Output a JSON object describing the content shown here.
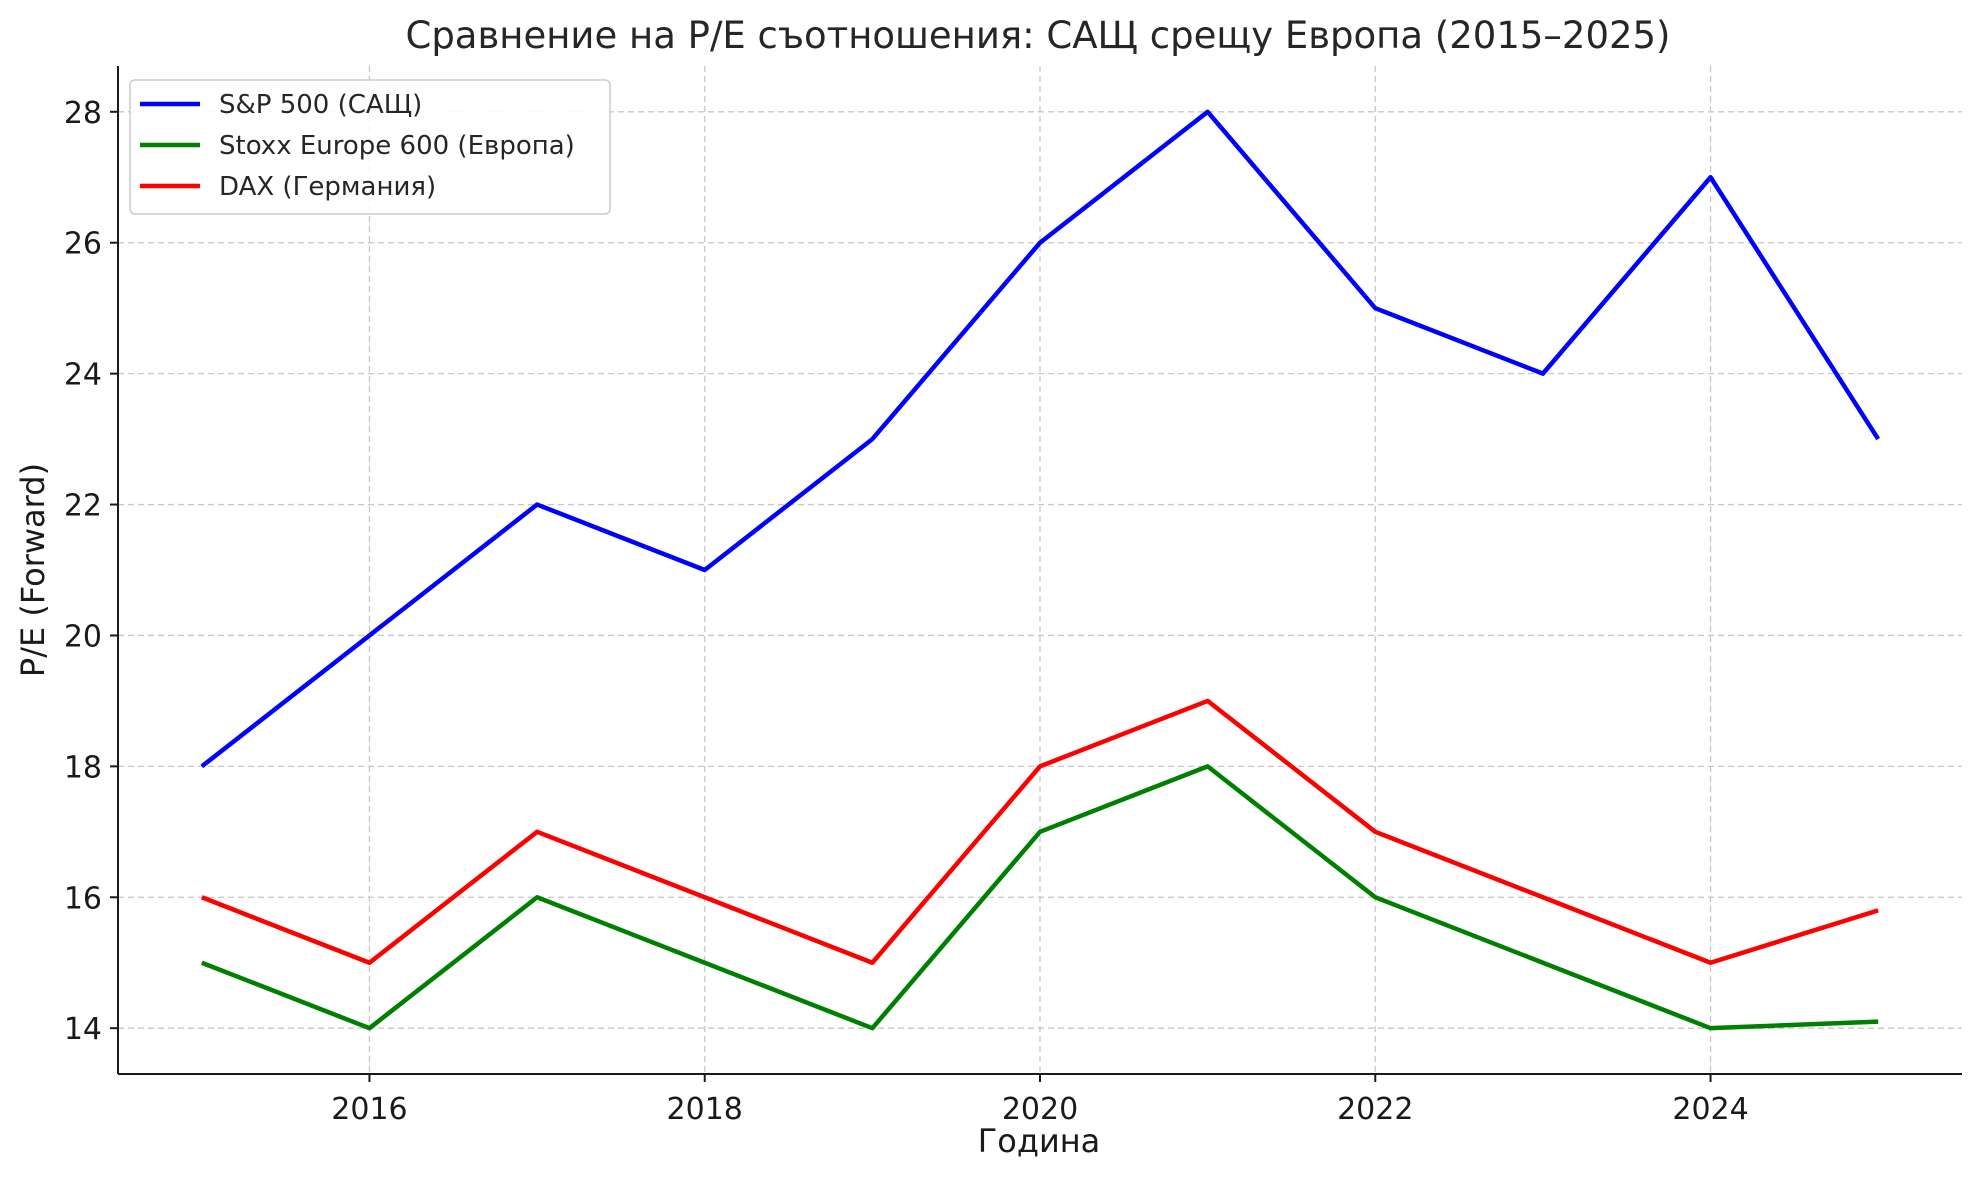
{
  "chart_data": {
    "type": "line",
    "title": "Сравнение на P/E съотношения: САЩ срещу Европа (2015–2025)",
    "xlabel": "Година",
    "ylabel": "P/E (Forward)",
    "x": [
      2015,
      2016,
      2017,
      2018,
      2019,
      2020,
      2021,
      2022,
      2023,
      2024,
      2025
    ],
    "xlim": [
      2014.5,
      2025.5
    ],
    "ylim": [
      13.3,
      28.7
    ],
    "xticks": [
      2016,
      2018,
      2020,
      2022,
      2024
    ],
    "yticks": [
      14,
      16,
      18,
      20,
      22,
      24,
      26,
      28
    ],
    "grid": true,
    "legend_position": "top-left",
    "series": [
      {
        "name": "S&P 500 (САЩ)",
        "color": "#0000ff",
        "values": [
          18,
          20,
          22,
          21,
          23,
          26,
          28,
          25,
          24,
          27,
          23
        ]
      },
      {
        "name": "Stoxx Europe 600 (Европа)",
        "color": "#008000",
        "values": [
          15,
          14,
          16,
          15,
          14,
          17,
          18,
          16,
          15,
          14,
          14.1
        ]
      },
      {
        "name": "DAX (Германия)",
        "color": "#ff0000",
        "values": [
          16,
          15,
          17,
          16,
          15,
          18,
          19,
          17,
          16,
          15,
          15.8
        ]
      }
    ]
  }
}
